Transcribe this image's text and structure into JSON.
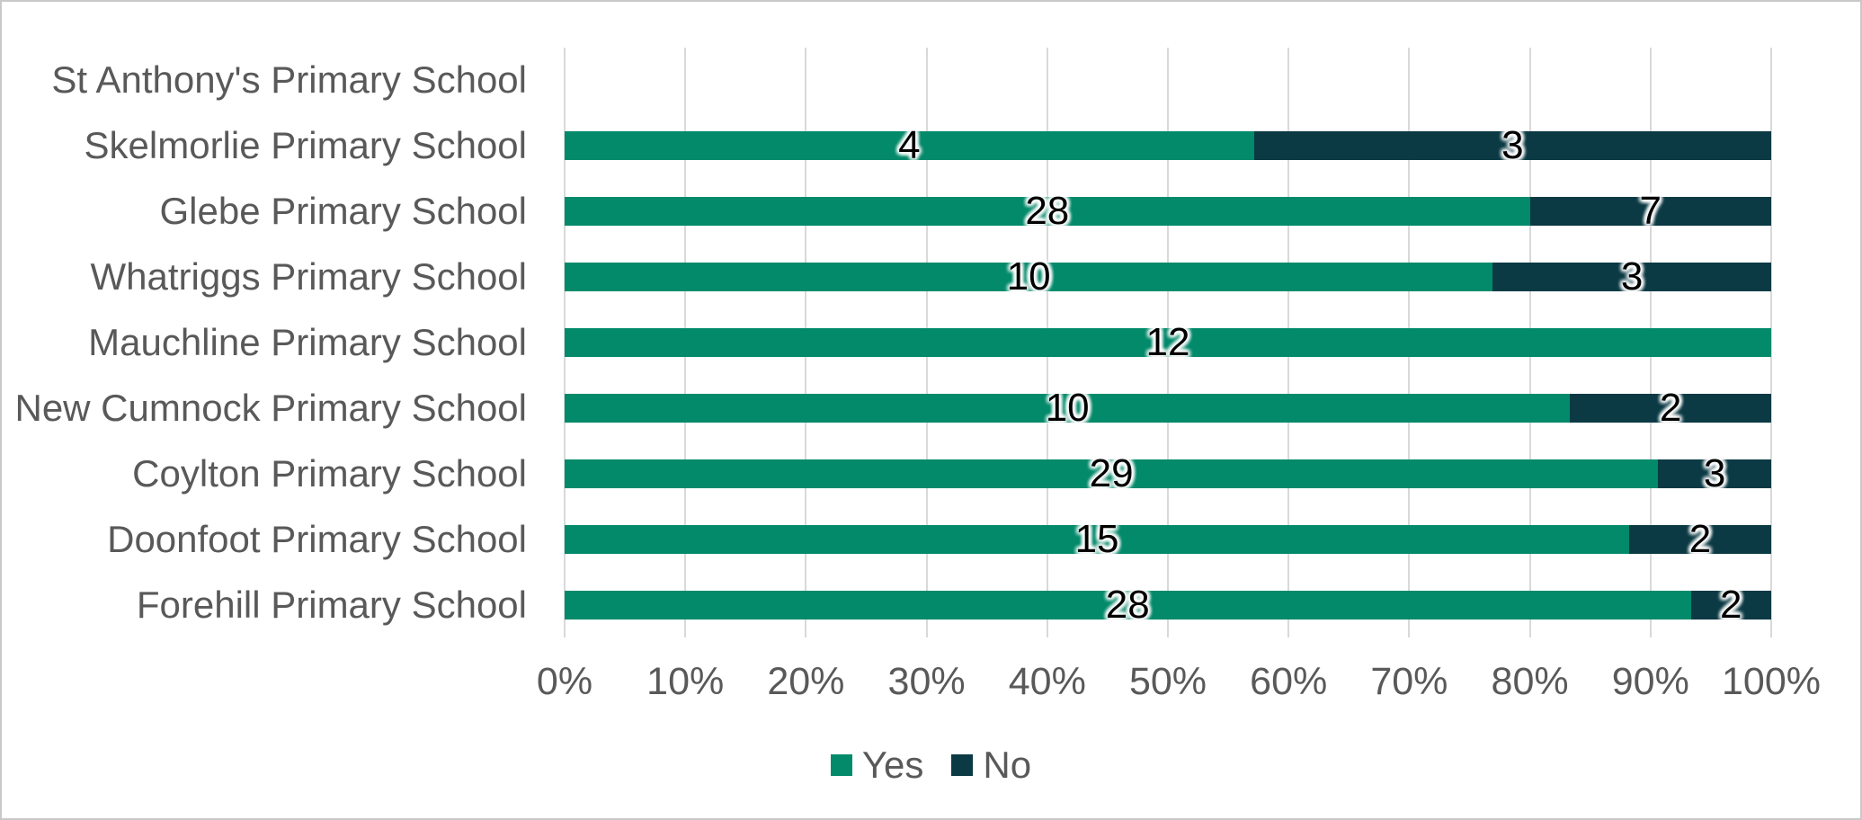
{
  "chart_data": {
    "type": "bar",
    "orientation": "horizontal",
    "stacked": "percent",
    "title": "",
    "categories": [
      "St Anthony's Primary School",
      "Skelmorlie Primary School",
      "Glebe Primary School",
      "Whatriggs Primary School",
      "Mauchline Primary School",
      "New Cumnock Primary School",
      "Coylton Primary School",
      "Doonfoot Primary School",
      "Forehill Primary School"
    ],
    "series": [
      {
        "name": "Yes",
        "color": "#028A6A",
        "values": [
          null,
          4,
          28,
          10,
          12,
          10,
          29,
          15,
          28
        ]
      },
      {
        "name": "No",
        "color": "#0B3A44",
        "values": [
          null,
          3,
          7,
          3,
          0,
          2,
          3,
          2,
          2
        ]
      }
    ],
    "x_axis": {
      "range": [
        0,
        100
      ],
      "tick_step": 10,
      "ticks": [
        "0%",
        "10%",
        "20%",
        "30%",
        "40%",
        "50%",
        "60%",
        "70%",
        "80%",
        "90%",
        "100%"
      ]
    },
    "legend": {
      "position": "bottom",
      "entries": [
        "Yes",
        "No"
      ]
    },
    "gridlines": {
      "vertical": true,
      "color": "#D9D9D9"
    },
    "axis_text_color": "#595959",
    "data_label_color": "#000000",
    "background": "#FFFFFF",
    "border_color": "#C9C9C9"
  }
}
